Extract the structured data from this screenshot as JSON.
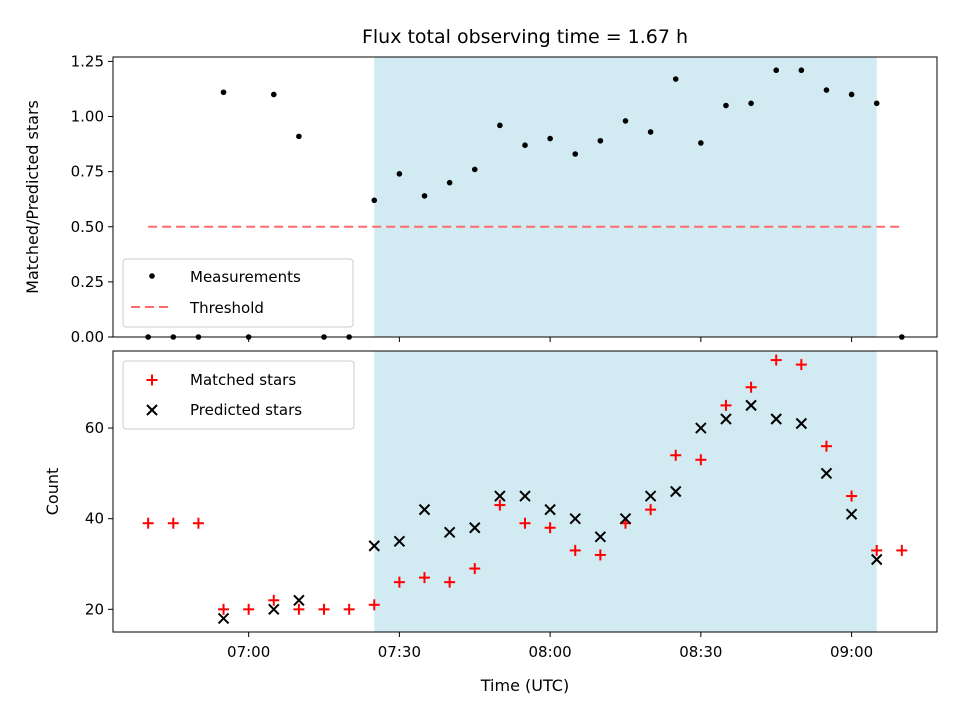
{
  "chart_data": [
    {
      "type": "scatter",
      "title": "Flux total observing time = 1.67 h",
      "ylabel": "Matched/Predicted stars",
      "xlabel": "",
      "ylim": [
        0,
        1.27
      ],
      "yticks": [
        "0.00",
        "0.25",
        "0.50",
        "0.75",
        "1.00",
        "1.25"
      ],
      "ytick_values": [
        0,
        0.25,
        0.5,
        0.75,
        1.0,
        1.25
      ],
      "x_ticks_shown": true,
      "x_tick_labels_shown": false,
      "shaded_interval": [
        "07:25",
        "09:05"
      ],
      "shade_color": "#add8e6",
      "legend": {
        "placement": "lower-left",
        "entries": [
          "Measurements",
          "Threshold"
        ]
      },
      "series": [
        {
          "name": "Measurements",
          "marker": "dot",
          "color": "#000000",
          "x": [
            "06:40",
            "06:45",
            "06:50",
            "06:55",
            "07:00",
            "07:05",
            "07:10",
            "07:15",
            "07:20",
            "07:25",
            "07:30",
            "07:35",
            "07:40",
            "07:45",
            "07:50",
            "07:55",
            "08:00",
            "08:05",
            "08:10",
            "08:15",
            "08:20",
            "08:25",
            "08:30",
            "08:35",
            "08:40",
            "08:45",
            "08:50",
            "08:55",
            "09:00",
            "09:05",
            "09:10"
          ],
          "y": [
            0,
            0,
            0,
            1.11,
            0,
            1.1,
            0.91,
            0,
            0,
            0.62,
            0.74,
            0.64,
            0.7,
            0.76,
            0.96,
            0.87,
            0.9,
            0.83,
            0.89,
            0.98,
            0.93,
            1.17,
            0.88,
            1.05,
            1.06,
            1.21,
            1.21,
            1.12,
            1.1,
            1.06,
            0
          ]
        },
        {
          "name": "Threshold",
          "style": "dashed",
          "color": "#ff6b6b",
          "x": [
            "06:40",
            "09:10"
          ],
          "y": [
            0.5,
            0.5
          ]
        }
      ]
    },
    {
      "type": "scatter",
      "title": "",
      "ylabel": "Count",
      "xlabel": "Time (UTC)",
      "ylim": [
        15,
        77
      ],
      "yticks": [
        "20",
        "40",
        "60"
      ],
      "ytick_values": [
        20,
        40,
        60
      ],
      "xlim": [
        "06:33",
        "09:17"
      ],
      "xticks": [
        "07:00",
        "07:30",
        "08:00",
        "08:30",
        "09:00"
      ],
      "shaded_interval": [
        "07:25",
        "09:05"
      ],
      "shade_color": "#add8e6",
      "legend": {
        "placement": "upper-left",
        "entries": [
          "Matched stars",
          "Predicted stars"
        ]
      },
      "series": [
        {
          "name": "Matched stars",
          "marker": "plus",
          "color": "#ff0000",
          "x": [
            "06:40",
            "06:45",
            "06:50",
            "06:55",
            "07:00",
            "07:05",
            "07:10",
            "07:15",
            "07:20",
            "07:25",
            "07:30",
            "07:35",
            "07:40",
            "07:45",
            "07:50",
            "07:55",
            "08:00",
            "08:05",
            "08:10",
            "08:15",
            "08:20",
            "08:25",
            "08:30",
            "08:35",
            "08:40",
            "08:45",
            "08:50",
            "08:55",
            "09:00",
            "09:05",
            "09:10"
          ],
          "y": [
            39,
            39,
            39,
            20,
            20,
            22,
            20,
            20,
            20,
            21,
            26,
            27,
            26,
            29,
            43,
            39,
            38,
            33,
            32,
            39,
            42,
            54,
            53,
            65,
            69,
            75,
            74,
            56,
            45,
            33,
            33
          ]
        },
        {
          "name": "Predicted stars",
          "marker": "x",
          "color": "#000000",
          "x": [
            "06:55",
            "07:05",
            "07:10",
            "07:25",
            "07:30",
            "07:35",
            "07:40",
            "07:45",
            "07:50",
            "07:55",
            "08:00",
            "08:05",
            "08:10",
            "08:15",
            "08:20",
            "08:25",
            "08:30",
            "08:35",
            "08:40",
            "08:45",
            "08:50",
            "08:55",
            "09:00",
            "09:05"
          ],
          "y": [
            18,
            20,
            22,
            34,
            35,
            42,
            37,
            38,
            45,
            45,
            42,
            40,
            36,
            40,
            45,
            46,
            60,
            62,
            65,
            62,
            61,
            50,
            41,
            31
          ]
        }
      ]
    }
  ]
}
